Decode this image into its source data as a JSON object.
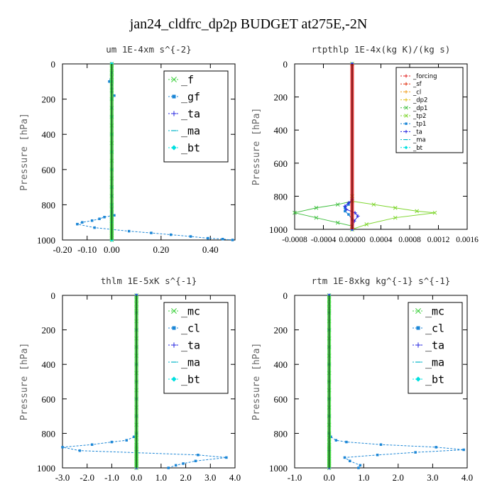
{
  "figure": {
    "title": "jan24_cldfrc_dp2p  BUDGET at275E,-2N"
  },
  "chart_data": [
    {
      "type": "line",
      "title": "um   1E-4xm s^{-2}",
      "ylabel": "Pressure [hPa]",
      "ylim": [
        1000,
        0
      ],
      "xlim": [
        -0.2,
        0.5
      ],
      "xticks": [
        "-0.20",
        "-0.10",
        "0.00",
        "0.20",
        "0.40"
      ],
      "xtick_values": [
        -0.2,
        -0.1,
        0.0,
        0.2,
        0.4
      ],
      "yticks": [
        "0",
        "200",
        "400",
        "600",
        "800",
        "1000"
      ],
      "ytick_values": [
        0,
        200,
        400,
        600,
        800,
        1000
      ],
      "legend_position": "top-right",
      "legend_font": "large",
      "grid": false,
      "series": [
        {
          "name": "_f",
          "color": "#3fd13f",
          "marker": "x",
          "x": [
            0,
            0,
            0,
            0,
            0,
            0,
            0,
            0,
            0,
            0,
            0,
            0,
            0,
            0,
            0,
            0,
            0,
            0,
            0,
            0,
            0,
            0,
            0,
            0,
            0,
            0,
            0,
            0,
            0,
            0,
            0,
            0,
            0,
            0,
            0
          ],
          "y": [
            0,
            25,
            50,
            75,
            100,
            150,
            200,
            250,
            300,
            350,
            400,
            450,
            500,
            550,
            600,
            650,
            700,
            750,
            800,
            825,
            850,
            870,
            880,
            890,
            900,
            910,
            920,
            930,
            940,
            950,
            960,
            970,
            980,
            990,
            1000
          ]
        },
        {
          "name": "_gf",
          "color": "#1b86d6",
          "marker": "square",
          "x": [
            0,
            0,
            -0.01,
            0,
            0,
            0,
            0.01,
            0,
            0,
            0,
            0,
            0,
            0,
            0,
            0,
            0,
            0,
            0,
            0,
            0,
            0.01,
            -0.03,
            -0.05,
            -0.08,
            -0.12,
            -0.14,
            -0.07,
            0.07,
            0.16,
            0.24,
            0.32,
            0.39,
            0.45,
            0.49
          ],
          "y": [
            0,
            50,
            100,
            120,
            140,
            160,
            180,
            200,
            250,
            300,
            400,
            500,
            600,
            700,
            750,
            800,
            820,
            840,
            845,
            850,
            860,
            870,
            880,
            890,
            900,
            910,
            930,
            950,
            960,
            970,
            980,
            990,
            995,
            1000
          ]
        },
        {
          "name": "_ta",
          "color": "#2424e0",
          "marker": "+",
          "x": [
            0,
            0,
            0,
            0,
            0,
            0,
            0,
            0,
            0,
            0,
            0
          ],
          "y": [
            0,
            100,
            200,
            300,
            400,
            500,
            600,
            700,
            800,
            900,
            1000
          ]
        },
        {
          "name": "_ma",
          "color": "#00b4c8",
          "marker": "dash",
          "x": [
            0,
            0,
            0,
            0,
            0,
            0,
            0,
            0,
            0,
            0,
            0
          ],
          "y": [
            0,
            100,
            200,
            300,
            400,
            500,
            600,
            700,
            800,
            900,
            1000
          ]
        },
        {
          "name": "_bt",
          "color": "#00e0e0",
          "marker": "diamond",
          "x": [
            0,
            0,
            0,
            0,
            0,
            0,
            0,
            0,
            0,
            0,
            0
          ],
          "y": [
            0,
            100,
            200,
            300,
            400,
            500,
            600,
            700,
            800,
            900,
            1000
          ]
        }
      ],
      "line_series": "_gf",
      "markers_series": [
        "_f",
        "_bt"
      ]
    },
    {
      "type": "line",
      "title": "rtpthlp   1E-4x(kg K)/(kg s)",
      "ylabel": "Pressure [hPa]",
      "ylim": [
        1000,
        0
      ],
      "xlim": [
        -0.0008,
        0.0016
      ],
      "xticks": [
        "-0.0008",
        "-0.0004",
        "0.00000",
        "0.0004",
        "0.0008",
        "0.0012",
        "0.0016"
      ],
      "xtick_values": [
        -0.0008,
        -0.0004,
        0.0,
        0.0004,
        0.0008,
        0.0012,
        0.0016
      ],
      "yticks": [
        "0",
        "200",
        "400",
        "600",
        "800",
        "1000"
      ],
      "ytick_values": [
        0,
        200,
        400,
        600,
        800,
        1000
      ],
      "legend_position": "top-right",
      "legend_font": "small",
      "grid": false,
      "series": [
        {
          "name": "_forcing",
          "color": "#e01b1b",
          "marker": "+"
        },
        {
          "name": "_sf",
          "color": "#e03010",
          "marker": "+"
        },
        {
          "name": "_cl",
          "color": "#f0a020",
          "marker": "+"
        },
        {
          "name": "_dp2",
          "color": "#e0c020",
          "marker": "+"
        },
        {
          "name": "_dp1",
          "color": "#3fbf3f",
          "marker": "x",
          "x": [
            0,
            0,
            0,
            -0.0002,
            -0.0005,
            -0.0008,
            -0.0005,
            -0.0002,
            0,
            0
          ],
          "y": [
            0,
            800,
            830,
            850,
            870,
            900,
            930,
            960,
            980,
            1000
          ]
        },
        {
          "name": "_tp2",
          "color": "#7fd62f",
          "marker": "x",
          "x": [
            0,
            0,
            0,
            0.0003,
            0.0006,
            0.0009,
            0.00115,
            0.0006,
            0.0002,
            0
          ],
          "y": [
            0,
            800,
            830,
            850,
            870,
            890,
            900,
            930,
            970,
            1000
          ]
        },
        {
          "name": "_tp1",
          "color": "#1b86d6",
          "marker": "square",
          "x": [
            0,
            0,
            -5e-05,
            -0.0001,
            -0.0001,
            -5e-05,
            0,
            0
          ],
          "y": [
            0,
            820,
            850,
            870,
            890,
            910,
            940,
            1000
          ]
        },
        {
          "name": "_ta",
          "color": "#2424e0",
          "marker": "+",
          "x": [
            0,
            0,
            -5e-05,
            -0.0001,
            -8e-05,
            4e-05,
            8e-05,
            3e-05,
            0
          ],
          "y": [
            0,
            820,
            840,
            860,
            880,
            900,
            920,
            950,
            1000
          ]
        },
        {
          "name": "_ma",
          "color": "#00b4c8",
          "marker": "dash"
        },
        {
          "name": "_bt",
          "color": "#00e0e0",
          "marker": "diamond"
        }
      ],
      "line_series": "_forcing"
    },
    {
      "type": "line",
      "title": "thlm   1E-5xK s^{-1}",
      "ylabel": "Pressure [hPa]",
      "ylim": [
        1000,
        0
      ],
      "xlim": [
        -3.0,
        4.0
      ],
      "xticks": [
        "-3.0",
        "-2.0",
        "-1.0",
        "0.0",
        "1.0",
        "2.0",
        "3.0",
        "4.0"
      ],
      "xtick_values": [
        -3,
        -2,
        -1,
        0,
        1,
        2,
        3,
        4
      ],
      "yticks": [
        "0",
        "200",
        "400",
        "600",
        "800",
        "1000"
      ],
      "ytick_values": [
        0,
        200,
        400,
        600,
        800,
        1000
      ],
      "legend_position": "top-right",
      "legend_font": "large",
      "grid": false,
      "series": [
        {
          "name": "_mc",
          "color": "#3fd13f",
          "marker": "x",
          "x": [
            0,
            0,
            0,
            0,
            0,
            0,
            0,
            0,
            0,
            0,
            0,
            0,
            0,
            0,
            0,
            0,
            0,
            0,
            0,
            0,
            0,
            0,
            0,
            0,
            0,
            0,
            0,
            0,
            0,
            0,
            0,
            0,
            0,
            0,
            0
          ],
          "y": [
            0,
            25,
            50,
            75,
            100,
            150,
            200,
            250,
            300,
            350,
            400,
            450,
            500,
            550,
            600,
            650,
            700,
            750,
            800,
            825,
            850,
            870,
            880,
            890,
            900,
            910,
            920,
            930,
            940,
            950,
            960,
            970,
            980,
            990,
            1000
          ]
        },
        {
          "name": "_cl",
          "color": "#1b86d6",
          "marker": "square",
          "x": [
            0,
            0,
            0,
            0,
            0,
            0,
            -0.1,
            -0.4,
            -1.0,
            -1.8,
            -3.0,
            -2.3,
            2.5,
            3.65,
            2.4,
            1.9,
            1.6,
            1.3
          ],
          "y": [
            0,
            200,
            400,
            600,
            700,
            800,
            820,
            840,
            850,
            865,
            880,
            900,
            925,
            940,
            960,
            975,
            985,
            1000
          ]
        },
        {
          "name": "_ta",
          "color": "#2424e0",
          "marker": "+",
          "x": [
            0,
            0,
            0,
            0,
            0,
            0,
            0,
            0,
            0,
            0,
            0
          ],
          "y": [
            0,
            100,
            200,
            300,
            400,
            500,
            600,
            700,
            800,
            900,
            1000
          ]
        },
        {
          "name": "_ma",
          "color": "#00b4c8",
          "marker": "dash"
        },
        {
          "name": "_bt",
          "color": "#00e0e0",
          "marker": "diamond"
        }
      ],
      "line_series": "_cl",
      "markers_series": [
        "_mc"
      ]
    },
    {
      "type": "line",
      "title": "rtm   1E-8xkg kg^{-1} s^{-1}",
      "ylabel": "Pressure [hPa]",
      "ylim": [
        1000,
        0
      ],
      "xlim": [
        -1.0,
        4.0
      ],
      "xticks": [
        "-1.0",
        "0.0",
        "1.0",
        "2.0",
        "3.0",
        "4.0"
      ],
      "xtick_values": [
        -1,
        0,
        1,
        2,
        3,
        4
      ],
      "yticks": [
        "0",
        "200",
        "400",
        "600",
        "800",
        "1000"
      ],
      "ytick_values": [
        0,
        200,
        400,
        600,
        800,
        1000
      ],
      "legend_position": "top-right",
      "legend_font": "large",
      "grid": false,
      "series": [
        {
          "name": "_mc",
          "color": "#3fd13f",
          "marker": "x",
          "x": [
            0,
            0,
            0,
            0,
            0,
            0,
            0,
            0,
            0,
            0,
            0,
            0,
            0,
            0,
            0,
            0,
            0,
            0,
            0,
            0,
            0,
            0,
            0,
            0,
            0,
            0,
            0,
            0,
            0,
            0,
            0,
            0,
            0,
            0,
            0
          ],
          "y": [
            0,
            25,
            50,
            75,
            100,
            150,
            200,
            250,
            300,
            350,
            400,
            450,
            500,
            550,
            600,
            650,
            700,
            750,
            800,
            825,
            850,
            870,
            880,
            890,
            900,
            910,
            920,
            930,
            940,
            950,
            960,
            970,
            980,
            990,
            1000
          ]
        },
        {
          "name": "_cl",
          "color": "#1b86d6",
          "marker": "square",
          "x": [
            0,
            0,
            0,
            0,
            0,
            0,
            0.05,
            0.2,
            0.5,
            1.5,
            3.1,
            3.9,
            2.5,
            1.4,
            0.45,
            0.6,
            0.9,
            0.85
          ],
          "y": [
            0,
            200,
            400,
            600,
            700,
            800,
            820,
            840,
            850,
            865,
            880,
            895,
            910,
            925,
            940,
            960,
            985,
            1000
          ]
        },
        {
          "name": "_ta",
          "color": "#2424e0",
          "marker": "+",
          "x": [
            0,
            0,
            0,
            0,
            0,
            0,
            0,
            0,
            0,
            0,
            0
          ],
          "y": [
            0,
            100,
            200,
            300,
            400,
            500,
            600,
            700,
            800,
            900,
            1000
          ]
        },
        {
          "name": "_ma",
          "color": "#00b4c8",
          "marker": "dash"
        },
        {
          "name": "_bt",
          "color": "#00e0e0",
          "marker": "diamond"
        }
      ],
      "line_series": "_cl",
      "markers_series": [
        "_mc"
      ]
    }
  ]
}
